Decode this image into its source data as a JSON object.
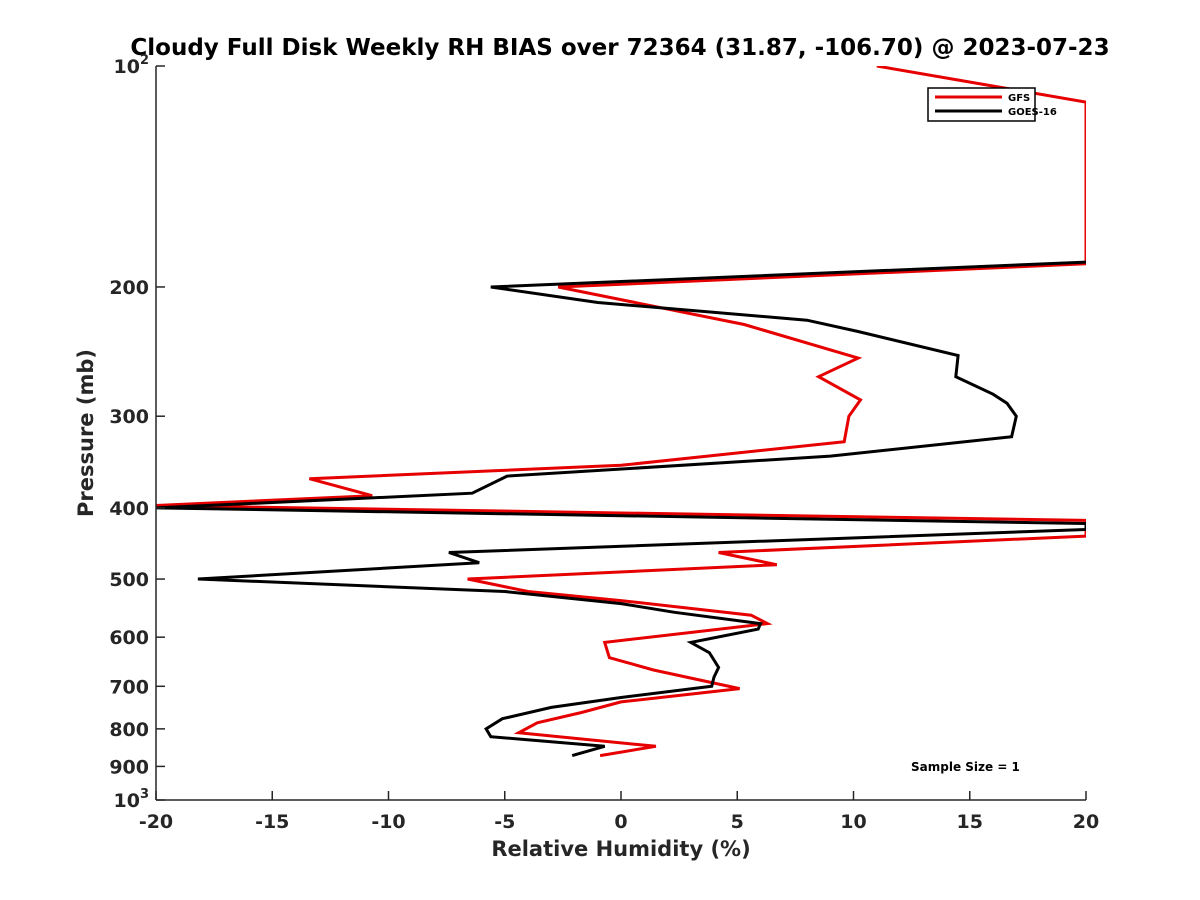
{
  "chart_data": {
    "type": "line",
    "title": "Cloudy Full Disk Weekly RH BIAS over 72364 (31.87, -106.70) @ 2023-07-23",
    "xlabel": "Relative Humidity (%)",
    "ylabel": "Pressure (mb)",
    "xlim": [
      -20,
      20
    ],
    "ylim": [
      100,
      1000
    ],
    "y_scale": "log",
    "y_reversed": true,
    "grid": false,
    "legend_position": "top-right",
    "x_ticks": [
      -20,
      -15,
      -10,
      -5,
      0,
      5,
      10,
      15,
      20
    ],
    "y_ticks": [
      {
        "value": 100,
        "base": "10",
        "exp": "2"
      },
      {
        "value": 200,
        "label": "200"
      },
      {
        "value": 300,
        "label": "300"
      },
      {
        "value": 400,
        "label": "400"
      },
      {
        "value": 500,
        "label": "500"
      },
      {
        "value": 600,
        "label": "600"
      },
      {
        "value": 700,
        "label": "700"
      },
      {
        "value": 800,
        "label": "800"
      },
      {
        "value": 900,
        "label": "900"
      },
      {
        "value": 1000,
        "base": "10",
        "exp": "3"
      }
    ],
    "series": [
      {
        "name": "GFS",
        "color": "#e60000",
        "points": [
          [
            11.0,
            100
          ],
          [
            20.0,
            112
          ],
          [
            20.0,
            186
          ],
          [
            -2.7,
            200
          ],
          [
            5.3,
            225
          ],
          [
            10.2,
            250
          ],
          [
            8.5,
            265
          ],
          [
            10.3,
            285
          ],
          [
            9.8,
            300
          ],
          [
            9.6,
            325
          ],
          [
            0.0,
            350
          ],
          [
            -13.4,
            365
          ],
          [
            -10.7,
            385
          ],
          [
            -20.0,
            397
          ],
          [
            20.0,
            416
          ],
          [
            20.0,
            437
          ],
          [
            4.2,
            460
          ],
          [
            6.7,
            478
          ],
          [
            -6.6,
            500
          ],
          [
            -4.0,
            520
          ],
          [
            0.0,
            535
          ],
          [
            5.6,
            560
          ],
          [
            6.3,
            575
          ],
          [
            -0.7,
            610
          ],
          [
            -0.5,
            640
          ],
          [
            1.4,
            665
          ],
          [
            5.1,
            705
          ],
          [
            0.0,
            735
          ],
          [
            -1.7,
            760
          ],
          [
            -3.6,
            785
          ],
          [
            -4.4,
            810
          ],
          [
            1.5,
            845
          ],
          [
            -0.9,
            870
          ]
        ]
      },
      {
        "name": "GOES-16",
        "color": "#000000",
        "points": [
          [
            20.0,
            185
          ],
          [
            -5.6,
            200
          ],
          [
            -1.0,
            210
          ],
          [
            8.0,
            222
          ],
          [
            10.2,
            230
          ],
          [
            14.5,
            248
          ],
          [
            14.4,
            265
          ],
          [
            16.0,
            280
          ],
          [
            16.6,
            288
          ],
          [
            17.0,
            300
          ],
          [
            16.8,
            320
          ],
          [
            9.0,
            340
          ],
          [
            -4.9,
            362
          ],
          [
            -6.4,
            382
          ],
          [
            -20.0,
            400
          ],
          [
            20.0,
            420
          ],
          [
            20.0,
            428
          ],
          [
            -7.4,
            460
          ],
          [
            -6.1,
            475
          ],
          [
            -18.2,
            500
          ],
          [
            -5.0,
            520
          ],
          [
            0.0,
            540
          ],
          [
            2.3,
            555
          ],
          [
            6.0,
            575
          ],
          [
            5.9,
            585
          ],
          [
            3.0,
            610
          ],
          [
            3.8,
            630
          ],
          [
            4.2,
            660
          ],
          [
            4.0,
            680
          ],
          [
            3.9,
            700
          ],
          [
            0.0,
            725
          ],
          [
            -3.0,
            748
          ],
          [
            -5.1,
            775
          ],
          [
            -5.8,
            800
          ],
          [
            -5.6,
            820
          ],
          [
            -0.7,
            845
          ],
          [
            -2.1,
            870
          ]
        ]
      }
    ],
    "annotations": [
      "Sample Size = 1"
    ]
  }
}
